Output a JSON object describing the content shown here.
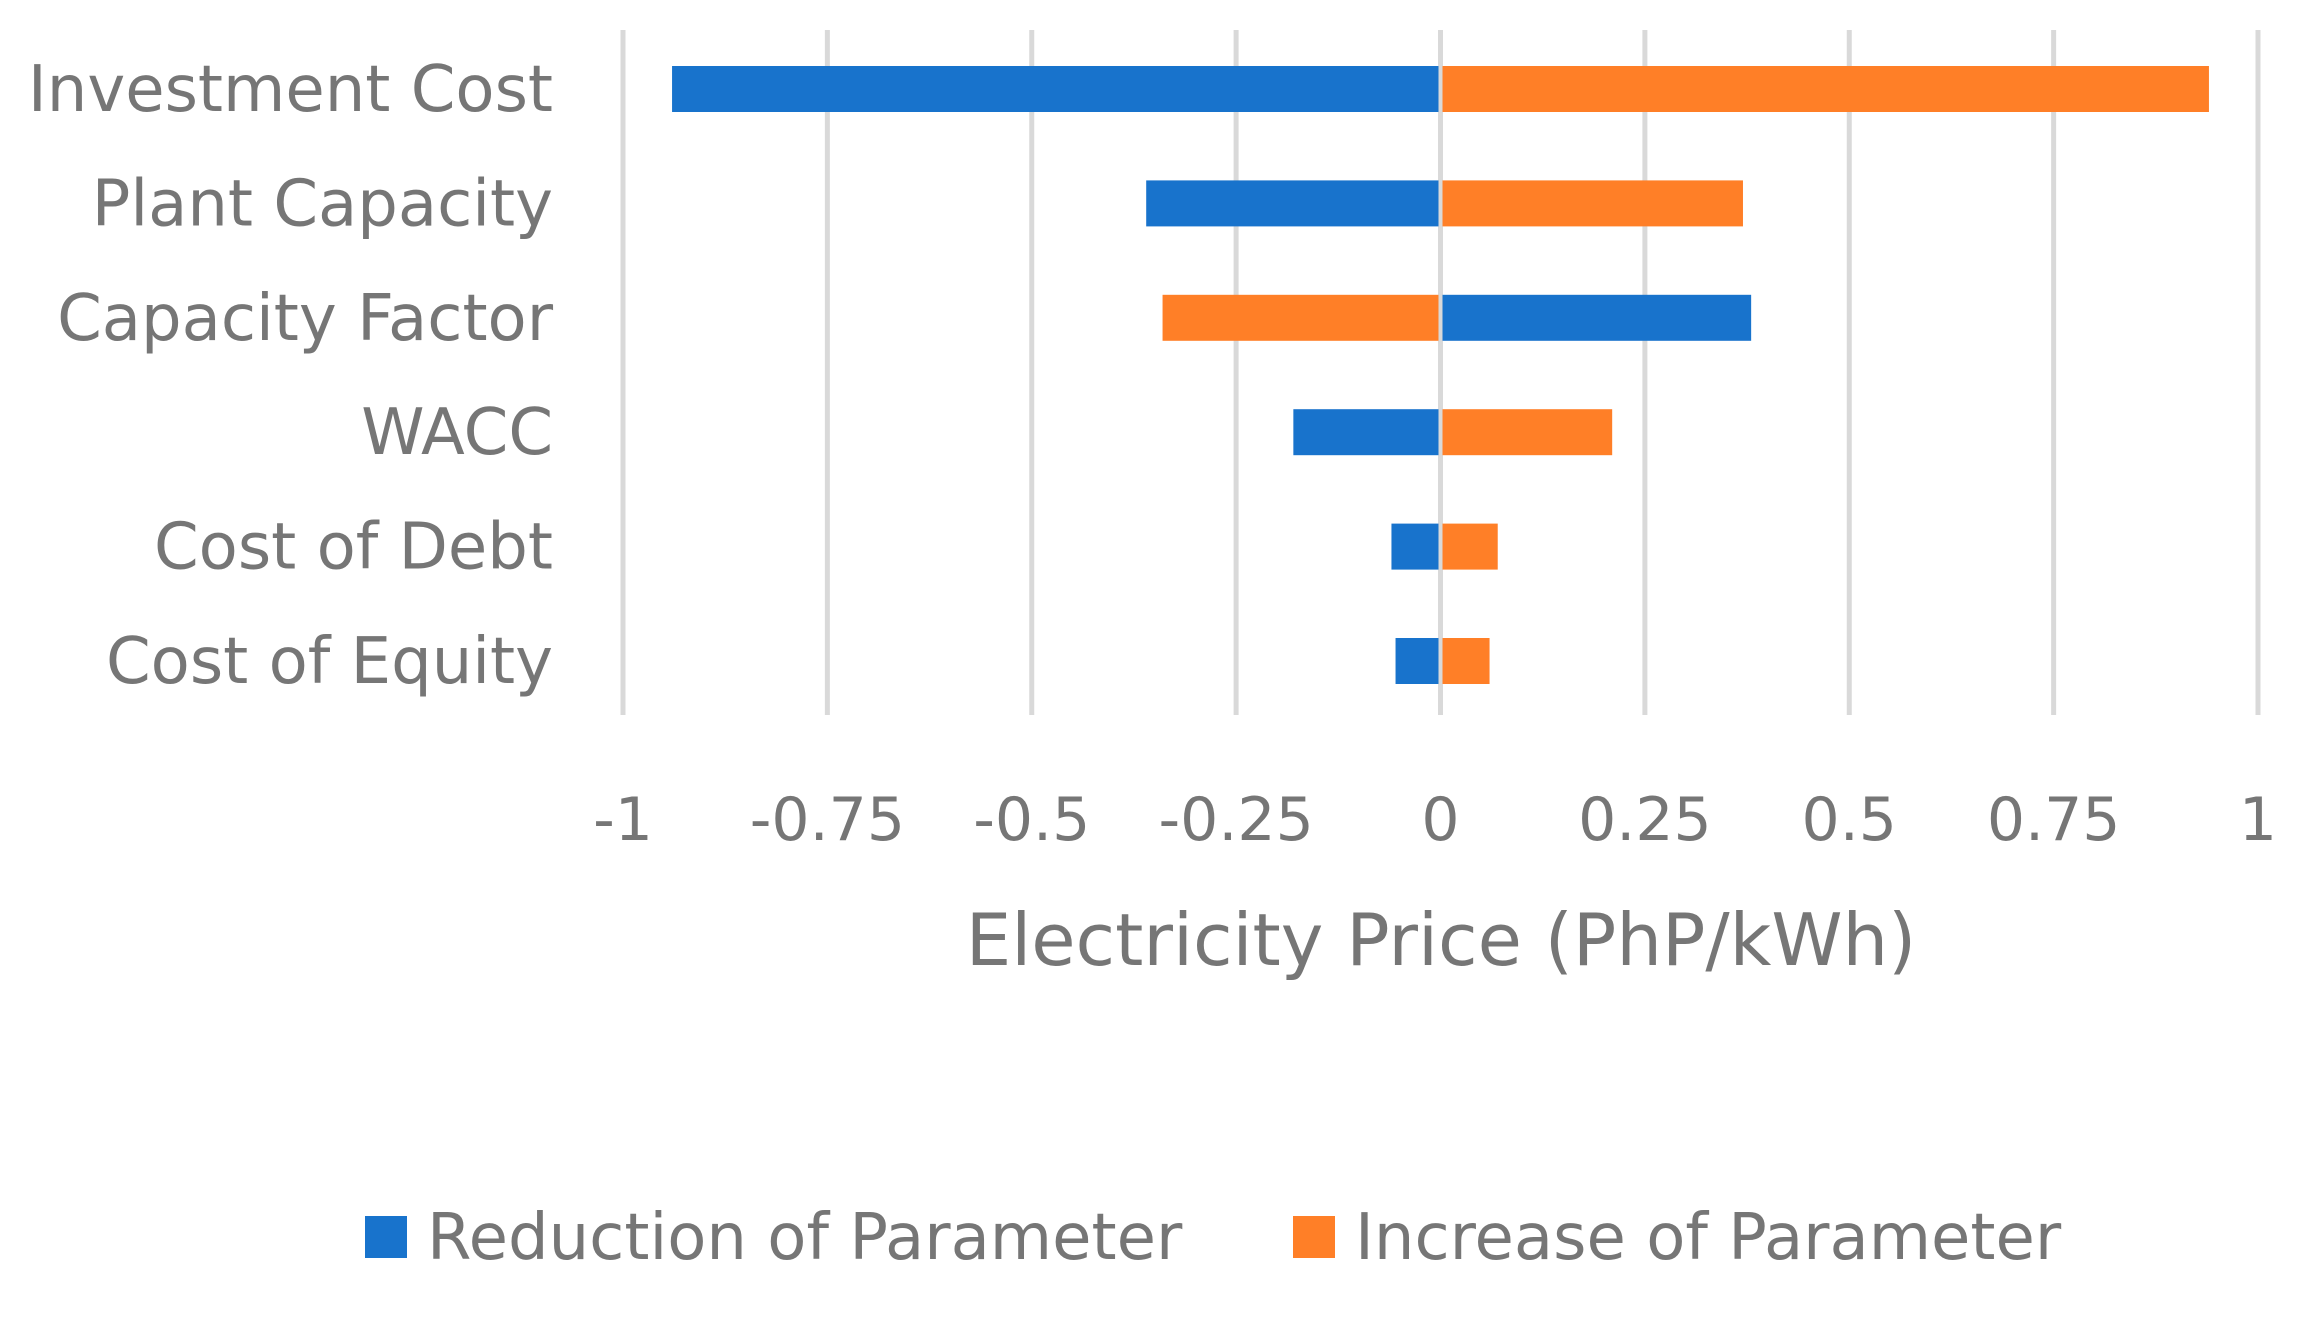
{
  "chart_data": {
    "type": "bar",
    "orientation": "horizontal",
    "title": "",
    "xlabel": "Electricity Price (PhP/kWh)",
    "ylabel": "",
    "xlim": [
      -1,
      1
    ],
    "xticks": [
      -1,
      -0.75,
      -0.5,
      -0.25,
      0,
      0.25,
      0.5,
      0.75,
      1
    ],
    "xtick_labels": [
      "-1",
      "-0.75",
      "-0.5",
      "-0.25",
      "0",
      "0.25",
      "0.5",
      "0.75",
      "1"
    ],
    "grid": true,
    "legend_position": "bottom",
    "categories": [
      "Investment Cost",
      "Plant Capacity",
      "Capacity Factor",
      "WACC",
      "Cost of Debt",
      "Cost of Equity"
    ],
    "series": [
      {
        "name": "Reduction of Parameter",
        "color": "#1873CC",
        "values": [
          -0.94,
          -0.36,
          0.38,
          -0.18,
          -0.06,
          -0.055
        ]
      },
      {
        "name": "Increase of Parameter",
        "color": "#FF7F27",
        "values": [
          0.94,
          0.37,
          -0.34,
          0.21,
          0.07,
          0.06
        ]
      }
    ]
  }
}
